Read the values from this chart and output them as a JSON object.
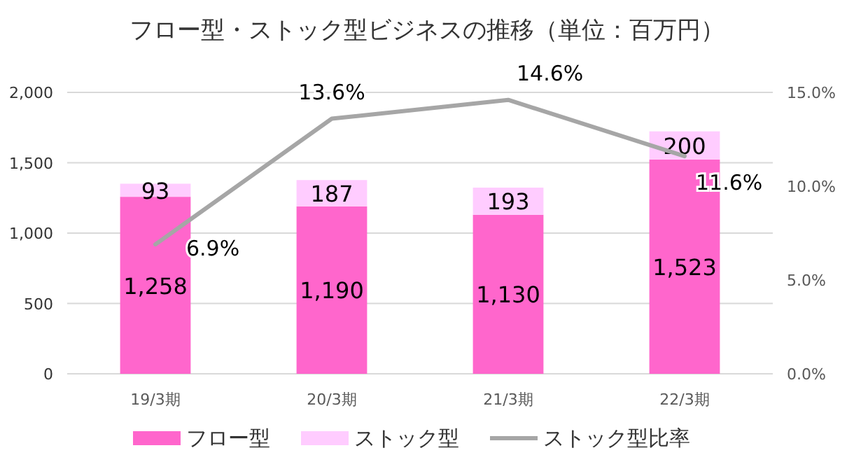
{
  "chart_data": {
    "type": "bar",
    "title": "フロー型・ストック型ビジネスの推移（単位：百万円）",
    "categories": [
      "19/3期",
      "20/3期",
      "21/3期",
      "22/3期"
    ],
    "stacked": true,
    "series": [
      {
        "name": "フロー型",
        "color": "#ff66cc",
        "values": [
          1258,
          1190,
          1130,
          1523
        ],
        "value_labels": [
          "1,258",
          "1,190",
          "1,130",
          "1,523"
        ]
      },
      {
        "name": "ストック型",
        "color": "#ffccff",
        "values": [
          93,
          187,
          193,
          200
        ],
        "value_labels": [
          "93",
          "187",
          "193",
          "200"
        ]
      },
      {
        "name": "ストック型比率",
        "type": "line",
        "axis": "y2",
        "color": "#a6a6a6",
        "values": [
          6.9,
          13.6,
          14.6,
          11.6
        ],
        "value_labels": [
          "6.9%",
          "13.6%",
          "14.6%",
          "11.6%"
        ],
        "marker": "none"
      }
    ],
    "ylim": [
      0,
      2000
    ],
    "yticks": [
      0,
      {
        "value": 500,
        "label": "500"
      },
      {
        "value": 1000,
        "label": "1,000"
      },
      {
        "value": 1500,
        "label": "1,500"
      },
      {
        "value": 2000,
        "label": "2,000"
      }
    ],
    "y2lim": [
      0,
      15
    ],
    "y2ticks": [
      {
        "value": 0,
        "label": "0.0%"
      },
      {
        "value": 5,
        "label": "5.0%"
      },
      {
        "value": 10,
        "label": "10.0%"
      },
      {
        "value": 15,
        "label": "15.0%"
      }
    ],
    "grid": "y",
    "legend": "bottom"
  }
}
